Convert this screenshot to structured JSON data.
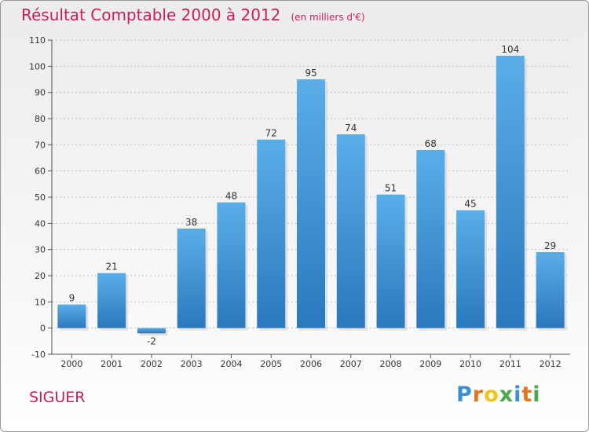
{
  "chart_data": {
    "type": "bar",
    "title": "Résultat Comptable 2000 à 2012",
    "unit": "(en milliers d'€)",
    "categories": [
      "2000",
      "2001",
      "2002",
      "2003",
      "2004",
      "2005",
      "2006",
      "2007",
      "2008",
      "2009",
      "2010",
      "2011",
      "2012"
    ],
    "values": [
      9,
      21,
      -2,
      38,
      48,
      72,
      95,
      74,
      51,
      68,
      45,
      104,
      29
    ],
    "value_labels": [
      "9",
      "21",
      "-2",
      "38",
      "48",
      "72",
      "95",
      "74",
      "51",
      "68",
      "45",
      "104",
      "29"
    ],
    "yticks": [
      -10,
      0,
      10,
      20,
      30,
      40,
      50,
      60,
      70,
      80,
      90,
      100,
      110
    ],
    "ylim": [
      -10,
      110
    ],
    "xlabel": "",
    "ylabel": "",
    "grid": true,
    "bar_color": "#4a9ee0"
  },
  "commune": "SIGUER",
  "logo": {
    "letters": [
      "P",
      "r",
      "o",
      "x",
      "i",
      "t",
      "i"
    ],
    "colors": [
      "#3a8fd8",
      "#e8731e",
      "#f2c318",
      "#4aa84a",
      "#3a8fd8",
      "#e8731e",
      "#4aa84a"
    ]
  }
}
